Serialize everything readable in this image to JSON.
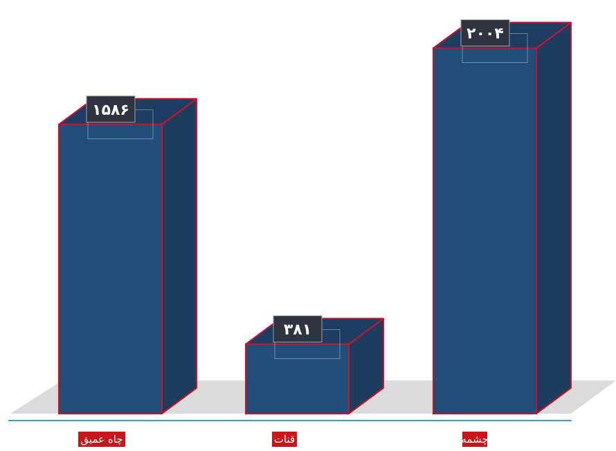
{
  "chart_data": {
    "type": "bar",
    "categories": [
      "چاه عمیق",
      "قنات",
      "چشمه"
    ],
    "values": [
      1586,
      381,
      2004
    ],
    "value_labels": [
      "۱۵۸۶",
      "۳۸۱",
      "۲۰۰۴"
    ],
    "title": "",
    "xlabel": "",
    "ylabel": "",
    "ylim": [
      0,
      2200
    ],
    "grid": false,
    "legend": "none",
    "style": "3d-box"
  },
  "colors": {
    "bar_front": "#214e79",
    "bar_side": "#1d3d5f",
    "bar_top": "#1d3e62",
    "bar_outline": "#d1102a",
    "value_label_bg": "#2e3540",
    "value_label_border": "#dfe5ea",
    "category_label_bg": "#c9161b",
    "floor": "#dcdbdc",
    "baseline": "#2ba2dc"
  }
}
